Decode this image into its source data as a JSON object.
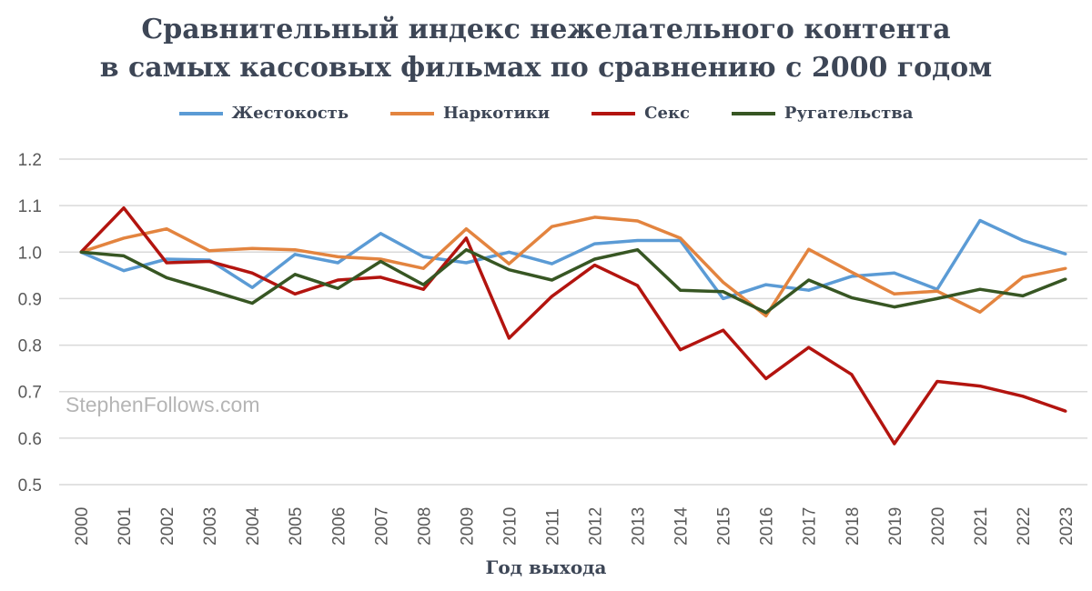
{
  "chart_data": {
    "type": "line",
    "title": [
      "Сравнительный индекс нежелательного контента",
      "в самых кассовых фильмах по сравнению с 2000 годом"
    ],
    "xlabel": "Год выхода",
    "ylabel": "",
    "ylim": [
      0.5,
      1.2
    ],
    "yticks": [
      "0.5",
      "0.6",
      "0.7",
      "0.8",
      "0.9",
      "1.0",
      "1.1",
      "1.2"
    ],
    "grid": true,
    "legend_position": "top",
    "watermark": "StephenFollows.com",
    "x": [
      "2000",
      "2001",
      "2002",
      "2003",
      "2004",
      "2005",
      "2006",
      "2007",
      "2008",
      "2009",
      "2010",
      "2011",
      "2012",
      "2013",
      "2014",
      "2015",
      "2016",
      "2017",
      "2018",
      "2019",
      "2020",
      "2021",
      "2022",
      "2023"
    ],
    "series": [
      {
        "name": "Жестокость",
        "color": "#5b9bd5",
        "values": [
          1.0,
          0.96,
          0.985,
          0.983,
          0.924,
          0.995,
          0.977,
          1.04,
          0.99,
          0.977,
          1.0,
          0.975,
          1.018,
          1.025,
          1.025,
          0.9,
          0.93,
          0.918,
          0.948,
          0.955,
          0.92,
          1.068,
          1.025,
          0.996
        ]
      },
      {
        "name": "Наркотики",
        "color": "#e3843f",
        "values": [
          1.0,
          1.03,
          1.05,
          1.003,
          1.008,
          1.005,
          0.99,
          0.985,
          0.965,
          1.05,
          0.975,
          1.055,
          1.075,
          1.067,
          1.03,
          0.935,
          0.863,
          1.006,
          0.957,
          0.91,
          0.916,
          0.871,
          0.946,
          0.965
        ]
      },
      {
        "name": "Секс",
        "color": "#b3140f",
        "values": [
          1.0,
          1.095,
          0.977,
          0.98,
          0.955,
          0.91,
          0.94,
          0.946,
          0.92,
          1.03,
          0.815,
          0.905,
          0.972,
          0.928,
          0.79,
          0.832,
          0.728,
          0.795,
          0.737,
          0.588,
          0.722,
          0.712,
          0.69,
          0.658
        ]
      },
      {
        "name": "Ругательства",
        "color": "#375623",
        "values": [
          1.0,
          0.992,
          0.945,
          0.918,
          0.89,
          0.952,
          0.922,
          0.98,
          0.93,
          1.005,
          0.962,
          0.94,
          0.985,
          1.005,
          0.918,
          0.915,
          0.87,
          0.94,
          0.902,
          0.882,
          0.9,
          0.92,
          0.906,
          0.942
        ]
      }
    ]
  }
}
